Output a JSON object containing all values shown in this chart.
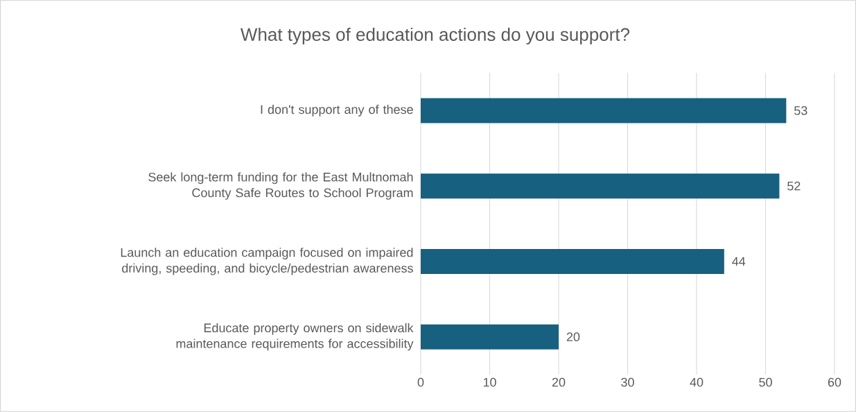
{
  "chart_data": {
    "type": "bar",
    "orientation": "horizontal",
    "title": "What types of education actions do you support?",
    "categories": [
      "I don't support any of these",
      "Seek long-term funding for the East Multnomah County Safe Routes to School Program",
      "Launch an education campaign focused on impaired driving, speeding, and bicycle/pedestrian awareness",
      "Educate property owners on sidewalk maintenance requirements for accessibility"
    ],
    "values": [
      53,
      52,
      44,
      20
    ],
    "color": "#17607f",
    "xlim": [
      0,
      60
    ],
    "xticks": [
      0,
      10,
      20,
      30,
      40,
      50,
      60
    ],
    "grid": "x",
    "data_labels": true
  }
}
